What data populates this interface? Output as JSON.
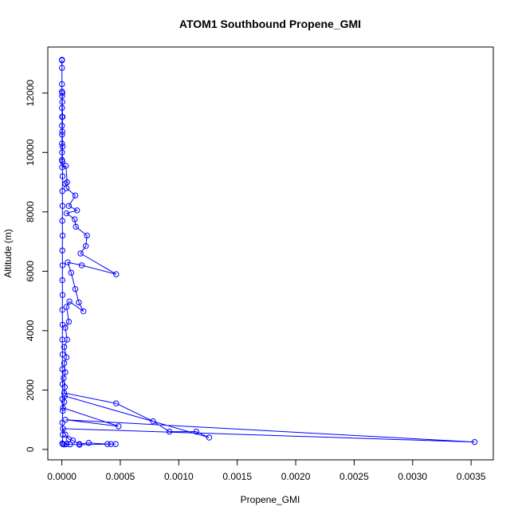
{
  "chart_data": {
    "type": "line",
    "title": "ATOM1 Southbound Propene_GMI",
    "xlabel": "Propene_GMI",
    "ylabel": "Altitude (m)",
    "xlim": [
      -0.00012,
      0.00369
    ],
    "ylim": [
      -350,
      13550
    ],
    "x_ticks": [
      0.0,
      0.0005,
      0.001,
      0.0015,
      0.002,
      0.0025,
      0.003,
      0.0035
    ],
    "x_tick_labels": [
      "0.0000",
      "0.0005",
      "0.0010",
      "0.0015",
      "0.0020",
      "0.0025",
      "0.0030",
      "0.0035"
    ],
    "y_ticks": [
      0,
      2000,
      4000,
      6000,
      8000,
      10000,
      12000
    ],
    "y_tick_labels": [
      "0",
      "2000",
      "4000",
      "6000",
      "8000",
      "10000",
      "12000"
    ],
    "grid": false,
    "legend": "none",
    "series": [
      {
        "color": "#0000ff",
        "marker": "open-circle",
        "points": [
          [
            1e-06,
            13100
          ],
          [
            1e-06,
            13120
          ],
          [
            1e-06,
            12850
          ],
          [
            1e-06,
            12300
          ],
          [
            1e-06,
            12050
          ],
          [
            2e-06,
            11900
          ],
          [
            1e-06,
            11500
          ],
          [
            2e-06,
            11200
          ],
          [
            1e-06,
            10900
          ],
          [
            2e-06,
            10600
          ],
          [
            1e-06,
            10300
          ],
          [
            2e-06,
            10000
          ],
          [
            1e-06,
            9750
          ],
          [
            2e-06,
            9500
          ],
          [
            3.5e-05,
            9550
          ],
          [
            4.5e-05,
            9000
          ],
          [
            3e-05,
            8950
          ],
          [
            4e-05,
            8800
          ],
          [
            0.000115,
            8550
          ],
          [
            6e-05,
            8200
          ],
          [
            0.00013,
            8050
          ],
          [
            4e-05,
            7950
          ],
          [
            0.00011,
            7750
          ],
          [
            0.00012,
            7500
          ],
          [
            0.000215,
            7200
          ],
          [
            0.000205,
            6850
          ],
          [
            0.00016,
            6600
          ],
          [
            0.000465,
            5900
          ],
          [
            0.00017,
            6200
          ],
          [
            5e-05,
            6300
          ],
          [
            8e-05,
            5950
          ],
          [
            0.000115,
            5400
          ],
          [
            0.000145,
            4950
          ],
          [
            0.000185,
            4650
          ],
          [
            6.5e-05,
            4980
          ],
          [
            4e-05,
            4800
          ],
          [
            6e-05,
            4300
          ],
          [
            3e-05,
            4100
          ],
          [
            4.5e-05,
            3700
          ],
          [
            2e-05,
            3450
          ],
          [
            4e-05,
            3100
          ],
          [
            2e-05,
            2900
          ],
          [
            3e-05,
            2600
          ],
          [
            1.5e-05,
            2400
          ],
          [
            2.5e-05,
            2100
          ],
          [
            2e-05,
            1900
          ],
          [
            0.000465,
            1550
          ],
          [
            0.00078,
            950
          ],
          [
            0.00092,
            600
          ],
          [
            0.00115,
            600
          ],
          [
            0.00126,
            400
          ],
          [
            2.5e-05,
            1800
          ],
          [
            2e-05,
            1600
          ],
          [
            1e-05,
            1400
          ],
          [
            0.000485,
            780
          ],
          [
            3e-05,
            1000
          ],
          [
            0.00353,
            250
          ],
          [
            1e-05,
            700
          ],
          [
            3e-05,
            500
          ],
          [
            6e-05,
            350
          ],
          [
            9.5e-05,
            300
          ],
          [
            0.00015,
            180
          ],
          [
            0.00023,
            220
          ],
          [
            0.00039,
            180
          ],
          [
            0.00046,
            180
          ],
          [
            0.00042,
            180
          ],
          [
            0.00015,
            160
          ],
          [
            7e-05,
            170
          ],
          [
            4e-05,
            180
          ],
          [
            2e-05,
            170
          ],
          [
            8e-06,
            180
          ],
          [
            4e-06,
            200
          ],
          [
            8e-06,
            500
          ],
          [
            4e-06,
            900
          ],
          [
            8e-06,
            1300
          ],
          [
            4e-06,
            1700
          ],
          [
            6e-06,
            2200
          ],
          [
            4e-06,
            2700
          ],
          [
            6e-06,
            3200
          ],
          [
            4e-06,
            3700
          ],
          [
            6e-06,
            4200
          ],
          [
            4e-06,
            4700
          ],
          [
            6e-06,
            5200
          ],
          [
            4e-06,
            5700
          ],
          [
            6e-06,
            6200
          ],
          [
            4e-06,
            6700
          ],
          [
            6e-06,
            7200
          ],
          [
            4e-06,
            7700
          ],
          [
            6e-06,
            8200
          ],
          [
            4e-06,
            8700
          ],
          [
            6e-06,
            9200
          ],
          [
            4e-06,
            9700
          ],
          [
            6e-06,
            10200
          ],
          [
            4e-06,
            10700
          ],
          [
            6e-06,
            11200
          ],
          [
            4e-06,
            11700
          ],
          [
            4e-06,
            12000
          ]
        ]
      }
    ]
  }
}
